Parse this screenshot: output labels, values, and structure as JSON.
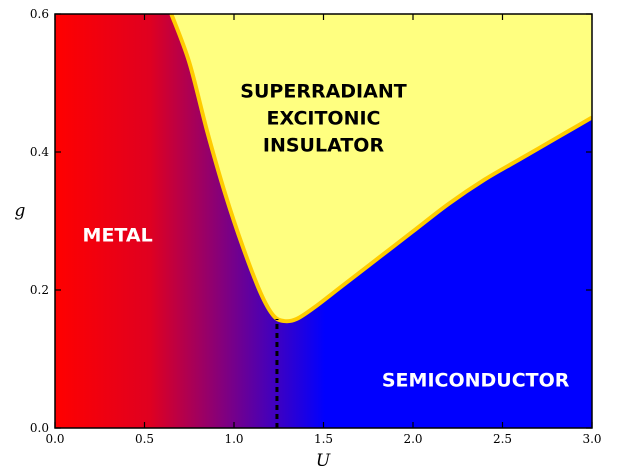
{
  "chart_data": {
    "type": "area",
    "xlabel": "U",
    "ylabel": "g",
    "xlim": [
      0.0,
      3.0
    ],
    "ylim": [
      0.0,
      0.6
    ],
    "x_ticks": [
      "0.0",
      "0.5",
      "1.0",
      "1.5",
      "2.0",
      "2.5",
      "3.0"
    ],
    "y_ticks": [
      "0.0",
      "0.2",
      "0.4",
      "0.6"
    ],
    "grid": false,
    "colors": {
      "metal": "#ff0000",
      "semiconductor": "#0000ff",
      "insulator_fill": "#ffff80",
      "boundary": "#ffcc00",
      "transition_line": "#000000"
    },
    "regions": [
      {
        "id": "metal",
        "label": "METAL",
        "label_color": "#ffffff",
        "anchor": [
          0.35,
          0.27
        ]
      },
      {
        "id": "insulator",
        "label_lines": [
          "SUPERRADIANT",
          "EXCITONIC",
          "INSULATOR"
        ],
        "label_color": "#000000",
        "anchor": [
          1.5,
          0.44
        ]
      },
      {
        "id": "semiconductor",
        "label": "SEMICONDUCTOR",
        "label_color": "#ffffff",
        "anchor": [
          2.35,
          0.06
        ]
      }
    ],
    "boundary": {
      "x": [
        0.65,
        0.75,
        0.85,
        0.95,
        1.05,
        1.15,
        1.22,
        1.28,
        1.35,
        1.45,
        1.6,
        1.8,
        2.0,
        2.2,
        2.4,
        2.6,
        2.8,
        3.0
      ],
      "y": [
        0.6,
        0.53,
        0.43,
        0.34,
        0.262,
        0.195,
        0.163,
        0.155,
        0.158,
        0.175,
        0.205,
        0.245,
        0.285,
        0.325,
        0.36,
        0.39,
        0.42,
        0.45
      ]
    },
    "transition": {
      "x": 1.24,
      "y_range": [
        0.0,
        0.158
      ],
      "style": "dashed"
    }
  }
}
